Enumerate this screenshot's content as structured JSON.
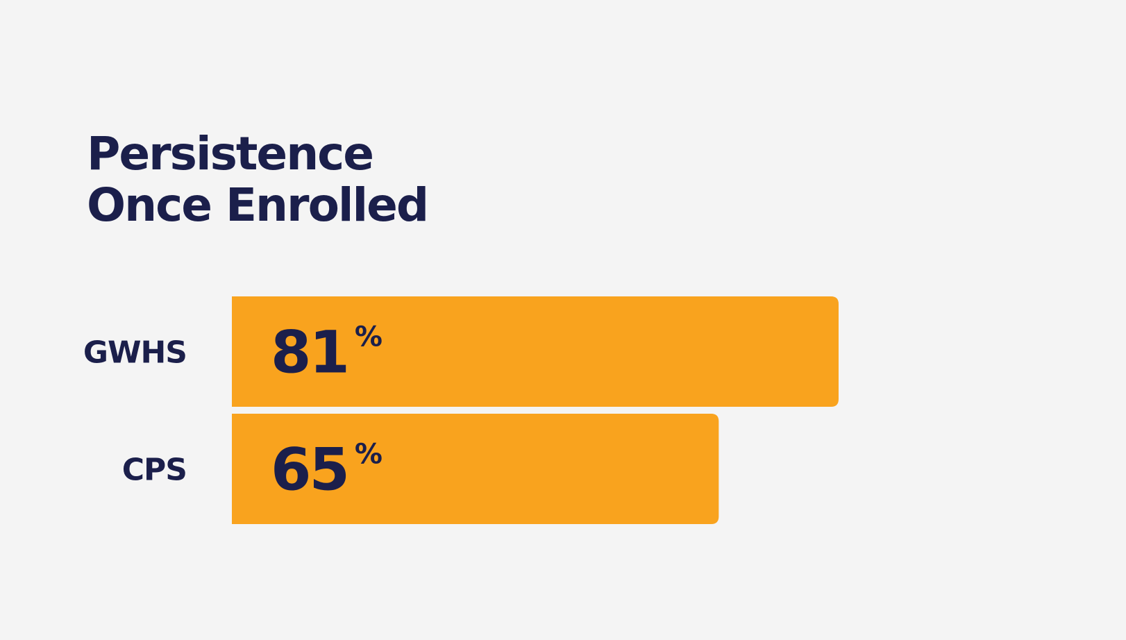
{
  "chart_data": {
    "type": "bar",
    "orientation": "horizontal",
    "title": [
      "Persistence",
      "Once Enrolled"
    ],
    "categories": [
      "GWHS",
      "CPS"
    ],
    "values": [
      81,
      65
    ],
    "value_labels": [
      "81%",
      "65%"
    ],
    "color": "#f9a31e"
  }
}
